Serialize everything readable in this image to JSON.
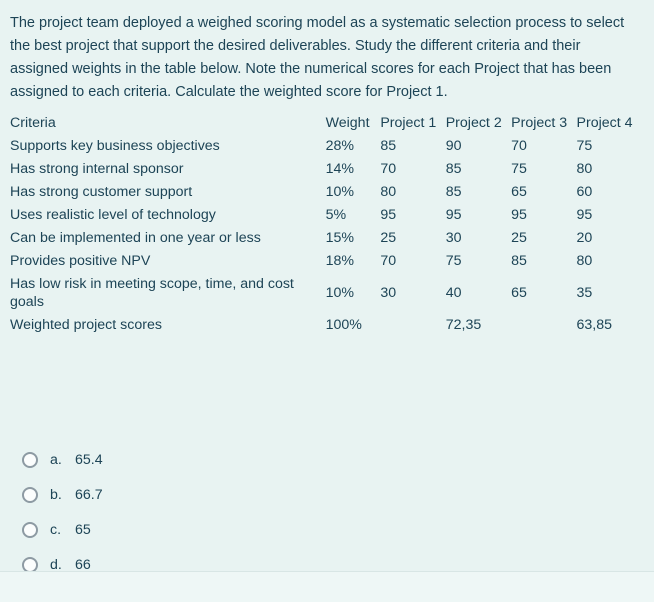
{
  "question": {
    "text": "The project team deployed a weighed scoring model as a systematic selection process to select the best project that support the desired deliverables. Study the different criteria and their assigned weights in the table below. Note the numerical scores for each Project that has been assigned to each criteria. Calculate the weighted score for Project 1."
  },
  "table": {
    "headers": [
      "Criteria",
      "Weight",
      "Project 1",
      "Project 2",
      "Project 3",
      "Project 4"
    ],
    "rows": [
      [
        "Supports key business objectives",
        "28%",
        "85",
        "90",
        "70",
        "75"
      ],
      [
        "Has strong internal sponsor",
        "14%",
        "70",
        "85",
        "75",
        "80"
      ],
      [
        "Has strong customer support",
        "10%",
        "80",
        "85",
        "65",
        "60"
      ],
      [
        "Uses realistic level of technology",
        "5%",
        "95",
        "95",
        "95",
        "95"
      ],
      [
        "Can be implemented in one year or less",
        "15%",
        "25",
        "30",
        "25",
        "20"
      ],
      [
        "Provides positive NPV",
        "18%",
        "70",
        "75",
        "85",
        "80"
      ],
      [
        "Has low risk in meeting scope, time, and cost goals",
        "10%",
        "30",
        "40",
        "65",
        "35"
      ],
      [
        "Weighted project scores",
        "100%",
        "",
        "72,35",
        "",
        "63,85"
      ]
    ]
  },
  "options": [
    {
      "key": "a.",
      "value": "65.4"
    },
    {
      "key": "b.",
      "value": "66.7"
    },
    {
      "key": "c.",
      "value": "65"
    },
    {
      "key": "d.",
      "value": "66"
    }
  ],
  "colors": {
    "background": "#e8f3f2",
    "text": "#1d4456"
  }
}
